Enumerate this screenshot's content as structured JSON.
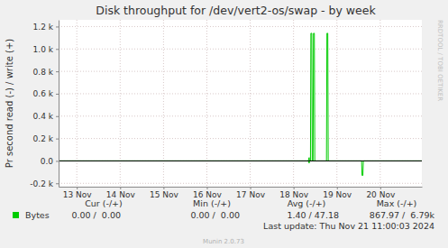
{
  "chart_data": {
    "type": "line",
    "title": "Disk throughput for /dev/vert2-os/swap - by week",
    "y_label": "Pr second read (-) / write (+)",
    "x": [
      13.08,
      18.84,
      18.86,
      18.87,
      18.89,
      18.9,
      18.92,
      18.93,
      18.95,
      18.96,
      18.98,
      18.99,
      19.26,
      19.27,
      19.29,
      19.3,
      20.07,
      20.08,
      20.1,
      20.11,
      21.46
    ],
    "series": [
      {
        "name": "Bytes",
        "color": "#00cc00",
        "values": [
          0,
          0,
          30,
          0,
          0,
          1140,
          1140,
          0,
          0,
          1140,
          1140,
          0,
          0,
          1140,
          1140,
          0,
          0,
          0,
          0,
          0,
          0
        ]
      },
      {
        "color": "#00cc00",
        "values": [
          0,
          0,
          -20,
          0,
          0,
          0,
          0,
          0,
          0,
          0,
          0,
          0,
          0,
          0,
          0,
          0,
          0,
          -130,
          -130,
          0,
          0
        ]
      }
    ],
    "xlim": [
      13.08,
      21.46
    ],
    "xticks": [
      {
        "value": 13.5,
        "label": "13 Nov"
      },
      {
        "value": 14.5,
        "label": "14 Nov"
      },
      {
        "value": 15.5,
        "label": "15 Nov"
      },
      {
        "value": 16.5,
        "label": "16 Nov"
      },
      {
        "value": 17.5,
        "label": "17 Nov"
      },
      {
        "value": 18.5,
        "label": "18 Nov"
      },
      {
        "value": 19.5,
        "label": "19 Nov"
      },
      {
        "value": 20.5,
        "label": "20 Nov"
      }
    ],
    "ylim": [
      -230,
      1260
    ],
    "yticks": [
      {
        "value": -200,
        "label": "-0.2 k"
      },
      {
        "value": 0,
        "label": "0.0"
      },
      {
        "value": 200,
        "label": "0.2 k"
      },
      {
        "value": 400,
        "label": "0.4 k"
      },
      {
        "value": 600,
        "label": "0.6 k"
      },
      {
        "value": 800,
        "label": "0.8 k"
      },
      {
        "value": 1000,
        "label": "1.0 k"
      },
      {
        "value": 1200,
        "label": "1.2 k"
      }
    ],
    "grid": true,
    "stats": {
      "headers": [
        "Cur (-/+)",
        "Min (-/+)",
        "Avg (-/+)",
        "Max (-/+)"
      ],
      "rows": [
        [
          "Bytes",
          "0.00 /  0.00",
          "0.00 /  0.00",
          "1.40 / 47.18",
          "867.97 /  6.79k"
        ]
      ]
    },
    "last_update": "Last update: Thu Nov 21 11:00:03 2024",
    "footer": "Munin 2.0.73",
    "watermark": "RRDTOOL / TOBI OETIKER"
  }
}
